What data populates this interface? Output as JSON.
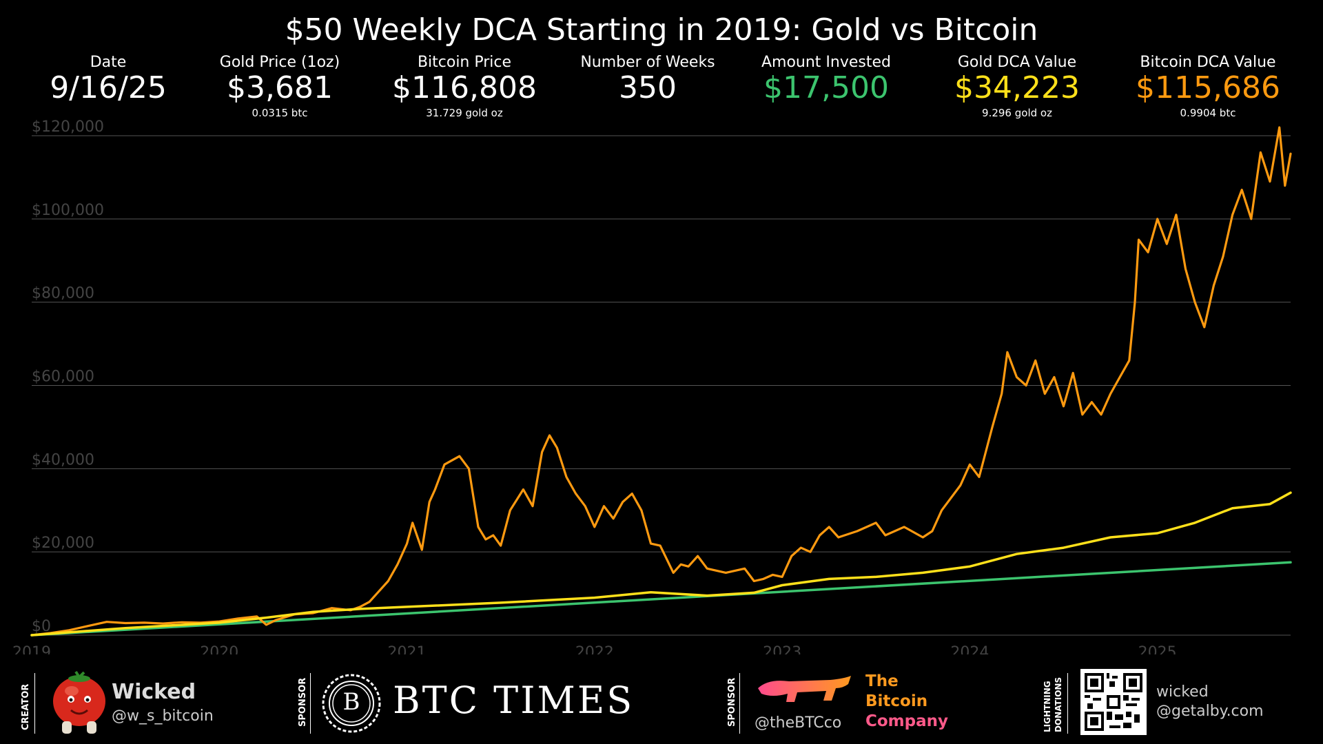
{
  "title": "$50 Weekly DCA Starting in 2019: Gold vs Bitcoin",
  "colors": {
    "bitcoin": "#ff9a10",
    "gold": "#ffe01a",
    "invested": "#3cc46e",
    "grid": "#555555",
    "axis_text": "#444444"
  },
  "stats": [
    {
      "label": "Date",
      "value": "9/16/25",
      "sub": "",
      "color": "#ffffff"
    },
    {
      "label": "Gold Price (1oz)",
      "value": "$3,681",
      "sub": "0.0315 btc",
      "color": "#ffffff"
    },
    {
      "label": "Bitcoin Price",
      "value": "$116,808",
      "sub": "31.729 gold oz",
      "color": "#ffffff"
    },
    {
      "label": "Number of Weeks",
      "value": "350",
      "sub": "",
      "color": "#ffffff"
    },
    {
      "label": "Amount Invested",
      "value": "$17,500",
      "sub": "",
      "color": "#3cc46e"
    },
    {
      "label": "Gold DCA Value",
      "value": "$34,223",
      "sub": "9.296 gold oz",
      "color": "#ffe01a"
    },
    {
      "label": "Bitcoin DCA Value",
      "value": "$115,686",
      "sub": "0.9904 btc",
      "color": "#ff9a10"
    }
  ],
  "chart_data": {
    "type": "line",
    "title": "$50 Weekly DCA Starting in 2019: Gold vs Bitcoin",
    "xlabel": "",
    "ylabel": "",
    "xlim": [
      2019.0,
      2025.71
    ],
    "ylim": [
      0,
      120000
    ],
    "x_ticks": [
      "2019",
      "2020",
      "2021",
      "2022",
      "2023",
      "2024",
      "2025"
    ],
    "y_ticks": [
      "$0",
      "$20,000",
      "$40,000",
      "$60,000",
      "$80,000",
      "$100,000",
      "$120,000"
    ],
    "grid": "horizontal",
    "series": [
      {
        "name": "Bitcoin DCA Value",
        "color": "#ff9a10",
        "x": [
          2019.0,
          2019.1,
          2019.2,
          2019.3,
          2019.4,
          2019.5,
          2019.6,
          2019.7,
          2019.8,
          2019.9,
          2020.0,
          2020.1,
          2020.2,
          2020.25,
          2020.3,
          2020.4,
          2020.5,
          2020.6,
          2020.7,
          2020.75,
          2020.8,
          2020.85,
          2020.9,
          2020.95,
          2021.0,
          2021.03,
          2021.08,
          2021.12,
          2021.15,
          2021.2,
          2021.28,
          2021.33,
          2021.38,
          2021.42,
          2021.46,
          2021.5,
          2021.55,
          2021.62,
          2021.67,
          2021.72,
          2021.76,
          2021.8,
          2021.85,
          2021.9,
          2021.95,
          2022.0,
          2022.05,
          2022.1,
          2022.15,
          2022.2,
          2022.25,
          2022.3,
          2022.35,
          2022.42,
          2022.46,
          2022.5,
          2022.55,
          2022.6,
          2022.7,
          2022.8,
          2022.85,
          2022.9,
          2022.95,
          2023.0,
          2023.05,
          2023.1,
          2023.15,
          2023.2,
          2023.25,
          2023.3,
          2023.4,
          2023.5,
          2023.55,
          2023.65,
          2023.75,
          2023.8,
          2023.85,
          2023.95,
          2024.0,
          2024.05,
          2024.12,
          2024.17,
          2024.2,
          2024.25,
          2024.3,
          2024.35,
          2024.4,
          2024.45,
          2024.5,
          2024.55,
          2024.6,
          2024.65,
          2024.7,
          2024.75,
          2024.8,
          2024.85,
          2024.88,
          2024.9,
          2024.95,
          2025.0,
          2025.05,
          2025.1,
          2025.15,
          2025.2,
          2025.25,
          2025.3,
          2025.35,
          2025.4,
          2025.45,
          2025.5,
          2025.55,
          2025.6,
          2025.65,
          2025.68,
          2025.71
        ],
        "y": [
          0,
          500,
          1200,
          2200,
          3200,
          2900,
          3000,
          2800,
          3100,
          3000,
          3300,
          4000,
          4500,
          2500,
          3600,
          5000,
          5300,
          6500,
          6000,
          6800,
          8000,
          10500,
          13000,
          17000,
          22000,
          27000,
          20500,
          32000,
          35000,
          41000,
          43000,
          40000,
          26000,
          23000,
          24000,
          21500,
          30000,
          35000,
          31000,
          44000,
          48000,
          45000,
          38000,
          34000,
          31000,
          26000,
          31000,
          28000,
          32000,
          34000,
          30000,
          22000,
          21500,
          15000,
          17000,
          16500,
          19000,
          16000,
          15000,
          16000,
          13000,
          13500,
          14500,
          14000,
          19000,
          21000,
          20000,
          24000,
          26000,
          23500,
          25000,
          27000,
          24000,
          26000,
          23500,
          25000,
          30000,
          36000,
          41000,
          38000,
          50000,
          58000,
          68000,
          62000,
          60000,
          66000,
          58000,
          62000,
          55000,
          63000,
          53000,
          56000,
          53000,
          58000,
          62000,
          66000,
          80000,
          95000,
          92000,
          100000,
          94000,
          101000,
          88000,
          80000,
          74000,
          84000,
          91000,
          101000,
          107000,
          100000,
          116000,
          109000,
          122000,
          108000,
          115686
        ]
      },
      {
        "name": "Gold DCA Value",
        "color": "#ffe01a",
        "x": [
          2019.0,
          2019.5,
          2020.0,
          2020.25,
          2020.5,
          2020.75,
          2021.0,
          2021.5,
          2022.0,
          2022.3,
          2022.6,
          2022.85,
          2023.0,
          2023.25,
          2023.5,
          2023.75,
          2024.0,
          2024.25,
          2024.5,
          2024.75,
          2025.0,
          2025.2,
          2025.4,
          2025.6,
          2025.71
        ],
        "y": [
          0,
          1700,
          3000,
          4200,
          5600,
          6300,
          6800,
          7800,
          9000,
          10300,
          9500,
          10200,
          12000,
          13500,
          14000,
          15000,
          16500,
          19500,
          21000,
          23500,
          24500,
          27000,
          30500,
          31500,
          34223
        ]
      },
      {
        "name": "Amount Invested",
        "color": "#3cc46e",
        "x": [
          2019.0,
          2025.71
        ],
        "y": [
          0,
          17500
        ]
      }
    ]
  },
  "footer": {
    "creator_label": "CREATOR",
    "creator_name": "Wicked",
    "creator_handle": "@w_s_bitcoin",
    "sponsor1_label": "SPONSOR",
    "sponsor1_name": "BTC TIMES",
    "sponsor1_monogram": "B",
    "sponsor2_label": "SPONSOR",
    "sponsor2_handle": "@theBTCco",
    "sponsor2_line1": "The",
    "sponsor2_line2": "Bitcoin",
    "sponsor2_line3": "Company",
    "donations_label_1": "LIGHTNING",
    "donations_label_2": "DONATIONS",
    "donations_line1": "wicked",
    "donations_line2": "@getalby.com"
  }
}
